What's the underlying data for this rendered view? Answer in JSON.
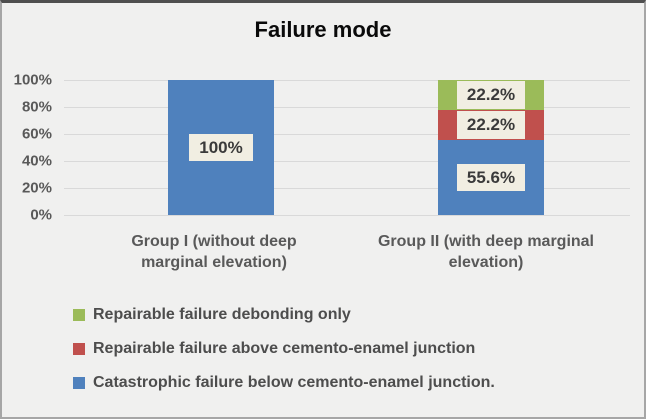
{
  "chart_data": {
    "type": "bar",
    "stacked": true,
    "title": "Failure mode",
    "categories": [
      "Group I (without deep\nmarginal elevation)",
      "Group II (with deep marginal\nelevation)"
    ],
    "series": [
      {
        "name": "Catastrophic failure below cemento-enamel junction.",
        "color": "#4f81bd",
        "values": [
          100,
          55.6
        ],
        "value_labels": [
          "100%",
          "55.6%"
        ]
      },
      {
        "name": "Repairable failure above cemento-enamel junction",
        "color": "#c0504d",
        "values": [
          0,
          22.2
        ],
        "value_labels": [
          "",
          "22.2%"
        ]
      },
      {
        "name": "Repairable failure debonding only",
        "color": "#9bbb59",
        "values": [
          0,
          22.2
        ],
        "value_labels": [
          "",
          "22.2%"
        ]
      }
    ],
    "y_ticks": [
      "0%",
      "20%",
      "40%",
      "60%",
      "80%",
      "100%"
    ],
    "ylim": [
      0,
      100
    ],
    "grid": true,
    "legend_position": "bottom-left",
    "legend": [
      {
        "label": "Repairable failure debonding only",
        "color": "#9bbb59"
      },
      {
        "label": "Repairable failure above cemento-enamel junction",
        "color": "#c0504d"
      },
      {
        "label": "Catastrophic failure below cemento-enamel junction.",
        "color": "#4f81bd"
      }
    ],
    "colors": {
      "background": "#f0f0ef",
      "border": "#a6a6a6",
      "gridline": "#d9d9d9",
      "data_label_bg": "#f1eee2",
      "axis_text": "#595959"
    }
  }
}
